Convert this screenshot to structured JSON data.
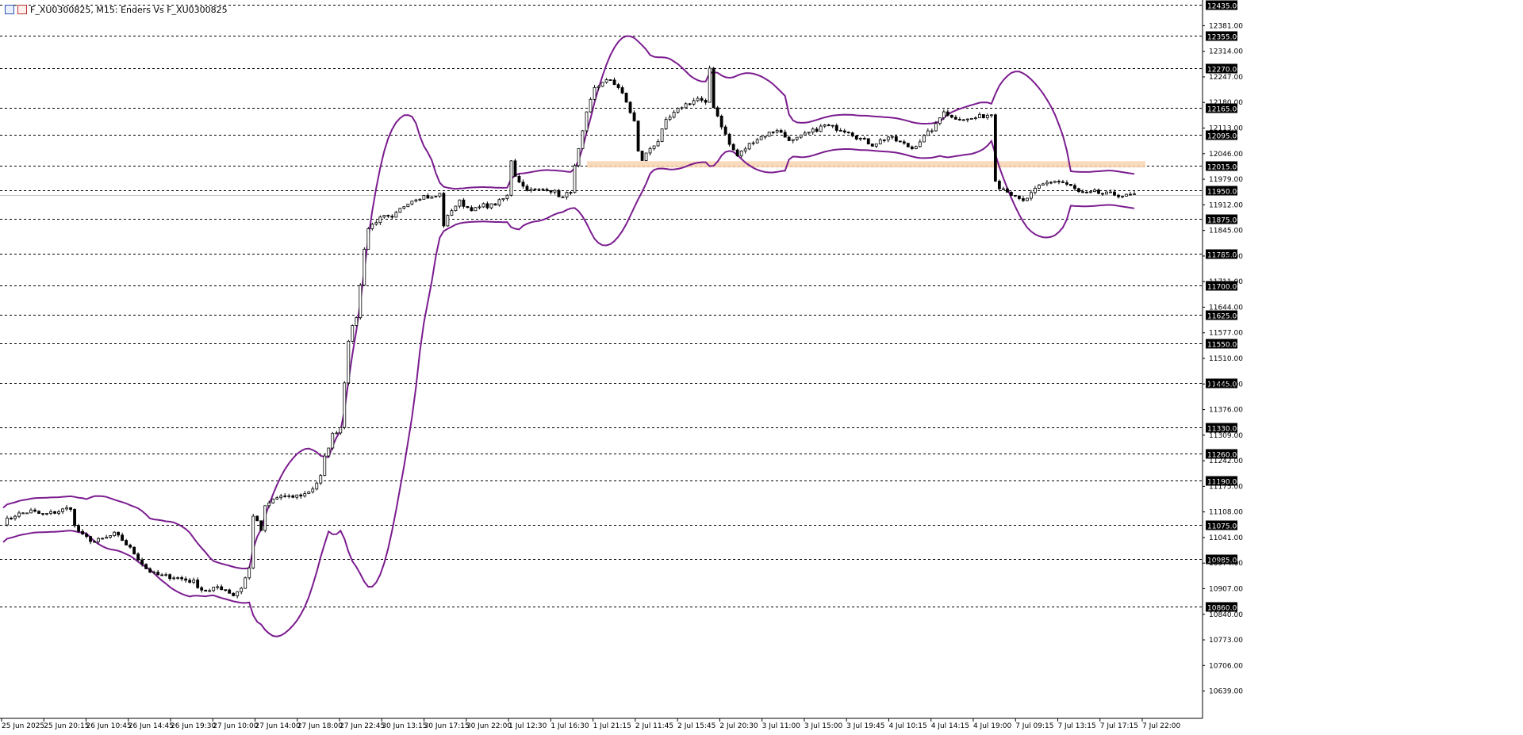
{
  "header": {
    "title": "F_XU0300825, M15:  Enders Vs F_XU0300825"
  },
  "colors": {
    "background": "#ffffff",
    "candle": "#000000",
    "band": "#7b1c8f",
    "zone": "#f8d3b0",
    "level_line": "#000000",
    "axis_text": "#000000"
  },
  "chart_data": {
    "type": "candlestick",
    "title": "F_XU0300825, M15:  Enders Vs F_XU0300825",
    "ylim": [
      10580,
      12440
    ],
    "grid": false,
    "y_ticks": [
      "12381.00",
      "12314.00",
      "12247.00",
      "12180.00",
      "12113.00",
      "12046.00",
      "11979.00",
      "11912.00",
      "11845.00",
      "11778.00",
      "11711.00",
      "11644.00",
      "11577.00",
      "11510.00",
      "11443.00",
      "11376.00",
      "11309.00",
      "11242.00",
      "11175.00",
      "11108.00",
      "11041.00",
      "10974.00",
      "10907.00",
      "10840.00",
      "10773.00",
      "10706.00",
      "10639.00"
    ],
    "x_ticks": [
      "25 Jun 2025",
      "25 Jun 20:15",
      "26 Jun 10:45",
      "26 Jun 14:45",
      "26 Jun 19:30",
      "27 Jun 10:00",
      "27 Jun 14:00",
      "27 Jun 18:00",
      "27 Jun 22:45",
      "30 Jun 13:15",
      "30 Jun 17:15",
      "30 Jun 22:00",
      "1 Jul 12:30",
      "1 Jul 16:30",
      "1 Jul 21:15",
      "2 Jul 11:45",
      "2 Jul 15:45",
      "2 Jul 20:30",
      "3 Jul 11:00",
      "3 Jul 15:00",
      "3 Jul 19:45",
      "4 Jul 10:15",
      "4 Jul 14:15",
      "4 Jul 19:00",
      "7 Jul 09:15",
      "7 Jul 13:15",
      "7 Jul 17:15",
      "7 Jul 22:00"
    ],
    "levels": [
      {
        "value": 12435.0,
        "label": "12435.00"
      },
      {
        "value": 12355.0,
        "label": "12355.00"
      },
      {
        "value": 12270.0,
        "label": "12270.00"
      },
      {
        "value": 12165.0,
        "label": "12165.00"
      },
      {
        "value": 12095.0,
        "label": "12095.00"
      },
      {
        "value": 12015.0,
        "label": "12015.00"
      },
      {
        "value": 11950.0,
        "label": "11950.00"
      },
      {
        "value": 11875.0,
        "label": "11875.00"
      },
      {
        "value": 11785.0,
        "label": "11785.00"
      },
      {
        "value": 11700.0,
        "label": "11700.00"
      },
      {
        "value": 11625.0,
        "label": "11625.00"
      },
      {
        "value": 11550.0,
        "label": "11550.00"
      },
      {
        "value": 11445.0,
        "label": "11445.00"
      },
      {
        "value": 11330.0,
        "label": "11330.00"
      },
      {
        "value": 11260.0,
        "label": "11260.00"
      },
      {
        "value": 11190.0,
        "label": "11190.00"
      },
      {
        "value": 11075.0,
        "label": "11075.00"
      },
      {
        "value": 10985.0,
        "label": "10985.00"
      },
      {
        "value": 10860.0,
        "label": "10860.00"
      }
    ],
    "zone": {
      "from": 12005,
      "to": 12020,
      "x_start": 0.5,
      "x_end": 1.0
    },
    "last_price": 11938,
    "close_path": [
      [
        0,
        11080
      ],
      [
        3,
        11100
      ],
      [
        7,
        11110
      ],
      [
        10,
        11100
      ],
      [
        14,
        11110
      ],
      [
        17,
        11120
      ],
      [
        18,
        11070
      ],
      [
        20,
        11045
      ],
      [
        23,
        11030
      ],
      [
        26,
        11040
      ],
      [
        28,
        11050
      ],
      [
        30,
        11035
      ],
      [
        33,
        11000
      ],
      [
        36,
        10960
      ],
      [
        38,
        10945
      ],
      [
        40,
        10940
      ],
      [
        43,
        10938
      ],
      [
        46,
        10930
      ],
      [
        48,
        10925
      ],
      [
        50,
        10905
      ],
      [
        52,
        10900
      ],
      [
        54,
        10912
      ],
      [
        56,
        10905
      ],
      [
        58,
        10890
      ],
      [
        60,
        10910
      ],
      [
        62,
        10960
      ],
      [
        63,
        11100
      ],
      [
        65,
        11060
      ],
      [
        66,
        11120
      ],
      [
        68,
        11140
      ],
      [
        70,
        11150
      ],
      [
        72,
        11145
      ],
      [
        74,
        11150
      ],
      [
        76,
        11155
      ],
      [
        78,
        11170
      ],
      [
        80,
        11200
      ],
      [
        81,
        11250
      ],
      [
        83,
        11310
      ],
      [
        85,
        11330
      ],
      [
        86,
        11450
      ],
      [
        87,
        11560
      ],
      [
        89,
        11620
      ],
      [
        90,
        11700
      ],
      [
        91,
        11800
      ],
      [
        92,
        11850
      ],
      [
        94,
        11870
      ],
      [
        96,
        11880
      ],
      [
        98,
        11875
      ],
      [
        100,
        11900
      ],
      [
        102,
        11920
      ],
      [
        104,
        11930
      ],
      [
        106,
        11935
      ],
      [
        108,
        11930
      ],
      [
        110,
        11940
      ],
      [
        111,
        11860
      ],
      [
        113,
        11900
      ],
      [
        115,
        11920
      ],
      [
        117,
        11905
      ],
      [
        119,
        11900
      ],
      [
        121,
        11910
      ],
      [
        123,
        11910
      ],
      [
        125,
        11920
      ],
      [
        127,
        11935
      ],
      [
        128,
        12030
      ],
      [
        129,
        11990
      ],
      [
        131,
        11960
      ],
      [
        133,
        11950
      ],
      [
        135,
        11950
      ],
      [
        137,
        11955
      ],
      [
        139,
        11945
      ],
      [
        141,
        11930
      ],
      [
        143,
        11950
      ],
      [
        144,
        12010
      ],
      [
        146,
        12100
      ],
      [
        147,
        12150
      ],
      [
        149,
        12220
      ],
      [
        151,
        12230
      ],
      [
        153,
        12240
      ],
      [
        155,
        12220
      ],
      [
        157,
        12180
      ],
      [
        159,
        12130
      ],
      [
        160,
        12050
      ],
      [
        161,
        12030
      ],
      [
        163,
        12060
      ],
      [
        165,
        12080
      ],
      [
        167,
        12130
      ],
      [
        169,
        12150
      ],
      [
        171,
        12170
      ],
      [
        173,
        12180
      ],
      [
        175,
        12190
      ],
      [
        177,
        12175
      ],
      [
        178,
        12270
      ],
      [
        179,
        12170
      ],
      [
        181,
        12120
      ],
      [
        183,
        12070
      ],
      [
        185,
        12040
      ],
      [
        187,
        12060
      ],
      [
        189,
        12080
      ],
      [
        191,
        12090
      ],
      [
        193,
        12100
      ],
      [
        195,
        12110
      ],
      [
        197,
        12090
      ],
      [
        199,
        12080
      ],
      [
        201,
        12090
      ],
      [
        203,
        12100
      ],
      [
        205,
        12110
      ],
      [
        207,
        12120
      ],
      [
        209,
        12115
      ],
      [
        211,
        12110
      ],
      [
        213,
        12105
      ],
      [
        215,
        12090
      ],
      [
        217,
        12080
      ],
      [
        219,
        12070
      ],
      [
        221,
        12080
      ],
      [
        223,
        12090
      ],
      [
        225,
        12080
      ],
      [
        227,
        12070
      ],
      [
        229,
        12060
      ],
      [
        231,
        12080
      ],
      [
        233,
        12100
      ],
      [
        235,
        12120
      ],
      [
        237,
        12160
      ],
      [
        239,
        12140
      ],
      [
        241,
        12140
      ],
      [
        243,
        12135
      ],
      [
        245,
        12140
      ],
      [
        247,
        12145
      ],
      [
        249,
        12150
      ],
      [
        250,
        11980
      ],
      [
        251,
        11960
      ],
      [
        253,
        11950
      ],
      [
        255,
        11930
      ],
      [
        257,
        11920
      ],
      [
        259,
        11940
      ],
      [
        261,
        11960
      ],
      [
        263,
        11970
      ],
      [
        265,
        11975
      ],
      [
        267,
        11970
      ],
      [
        269,
        11960
      ],
      [
        271,
        11945
      ],
      [
        273,
        11940
      ],
      [
        275,
        11945
      ],
      [
        277,
        11940
      ],
      [
        279,
        11940
      ],
      [
        281,
        11938
      ],
      [
        283,
        11935
      ],
      [
        285,
        11938
      ]
    ]
  }
}
